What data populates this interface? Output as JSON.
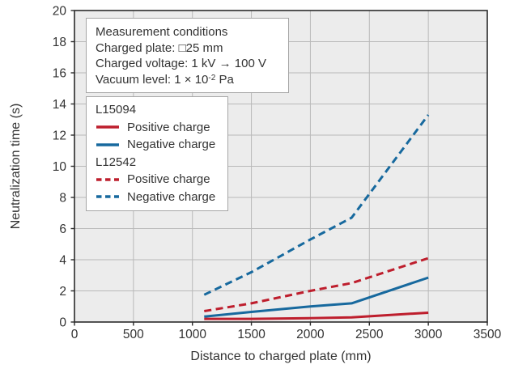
{
  "colors": {
    "positive_red": "#be1e2d",
    "negative_blue": "#17699e",
    "plot_bg": "#ececec",
    "grid": "#b9b9b9",
    "axis": "#2b2b2b",
    "text": "#333333",
    "box_border": "#a6a6a6",
    "box_bg": "#ffffff"
  },
  "conditions": {
    "title": "Measurement conditions",
    "charged_plate": "Charged plate: □25 mm",
    "charged_voltage": "Charged voltage: 1 kV → 100 V",
    "vacuum_prefix": "Vacuum level: 1 × 10",
    "vacuum_exponent": "-2",
    "vacuum_suffix": " Pa"
  },
  "legend": {
    "groups": [
      {
        "label": "L15094",
        "items": [
          "Positive charge",
          "Negative charge"
        ]
      },
      {
        "label": "L12542",
        "items": [
          "Positive charge",
          "Negative charge"
        ]
      }
    ]
  },
  "chart_data": {
    "type": "line",
    "title": "",
    "xlabel": "Distance to charged plate (mm)",
    "ylabel": "Neutralization time (s)",
    "xlim": [
      0,
      3500
    ],
    "ylim": [
      0,
      20
    ],
    "x_ticks": [
      0,
      500,
      1000,
      1500,
      2000,
      2500,
      3000,
      3500
    ],
    "y_ticks": [
      0,
      2,
      4,
      6,
      8,
      10,
      12,
      14,
      16,
      18,
      20
    ],
    "grid": true,
    "legend_position": "upper-left-inside",
    "x": [
      1100,
      1500,
      2000,
      2350,
      3000
    ],
    "series": [
      {
        "name": "L15094 Positive charge",
        "group": "L15094",
        "label": "Positive charge",
        "color": "#be1e2d",
        "dash": "solid",
        "values": [
          0.2,
          0.2,
          0.25,
          0.3,
          0.6
        ]
      },
      {
        "name": "L15094 Negative charge",
        "group": "L15094",
        "label": "Negative charge",
        "color": "#17699e",
        "dash": "solid",
        "values": [
          0.35,
          0.65,
          1.0,
          1.2,
          2.85
        ]
      },
      {
        "name": "L12542 Positive charge",
        "group": "L12542",
        "label": "Positive charge",
        "color": "#be1e2d",
        "dash": "dashed",
        "values": [
          0.7,
          1.2,
          2.0,
          2.5,
          4.1
        ]
      },
      {
        "name": "L12542 Negative charge",
        "group": "L12542",
        "label": "Negative charge",
        "color": "#17699e",
        "dash": "dashed",
        "values": [
          1.75,
          3.2,
          5.3,
          6.7,
          13.3
        ]
      }
    ]
  }
}
